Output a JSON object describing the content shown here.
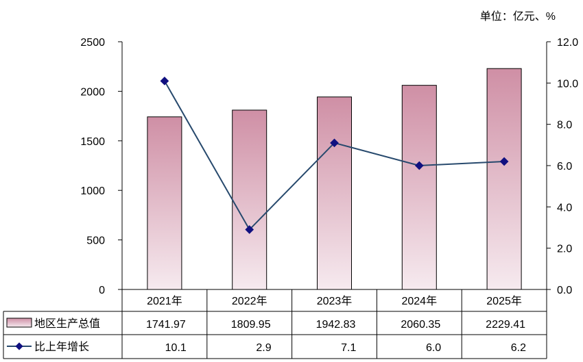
{
  "unit_label": "单位：亿元、%",
  "chart_data": {
    "type": "bar",
    "categories": [
      "2021年",
      "2022年",
      "2023年",
      "2024年",
      "2025年"
    ],
    "series": [
      {
        "name": "地区生产总值",
        "type": "bar",
        "axis": "left",
        "values": [
          1741.97,
          1809.95,
          1942.83,
          2060.35,
          2229.41
        ],
        "labels": [
          "1741.97",
          "1809.95",
          "1942.83",
          "2060.35",
          "2229.41"
        ],
        "color_top": "#cf8fa5",
        "color_bottom": "#f6eaef"
      },
      {
        "name": "比上年增长",
        "type": "line",
        "axis": "right",
        "values": [
          10.1,
          2.9,
          7.1,
          6.0,
          6.2
        ],
        "labels": [
          "10.1",
          "2.9",
          "7.1",
          "6.0",
          "6.2"
        ],
        "color": "#27496d",
        "marker_color": "#101080"
      }
    ],
    "y_left": {
      "range": [
        0,
        2500
      ],
      "ticks": [
        "0",
        "500",
        "1000",
        "1500",
        "2000",
        "2500"
      ]
    },
    "y_right": {
      "range": [
        0,
        12
      ],
      "ticks": [
        "0.0",
        "2.0",
        "4.0",
        "6.0",
        "8.0",
        "10.0",
        "12.0"
      ]
    },
    "grid": false,
    "legend": "data-table"
  }
}
